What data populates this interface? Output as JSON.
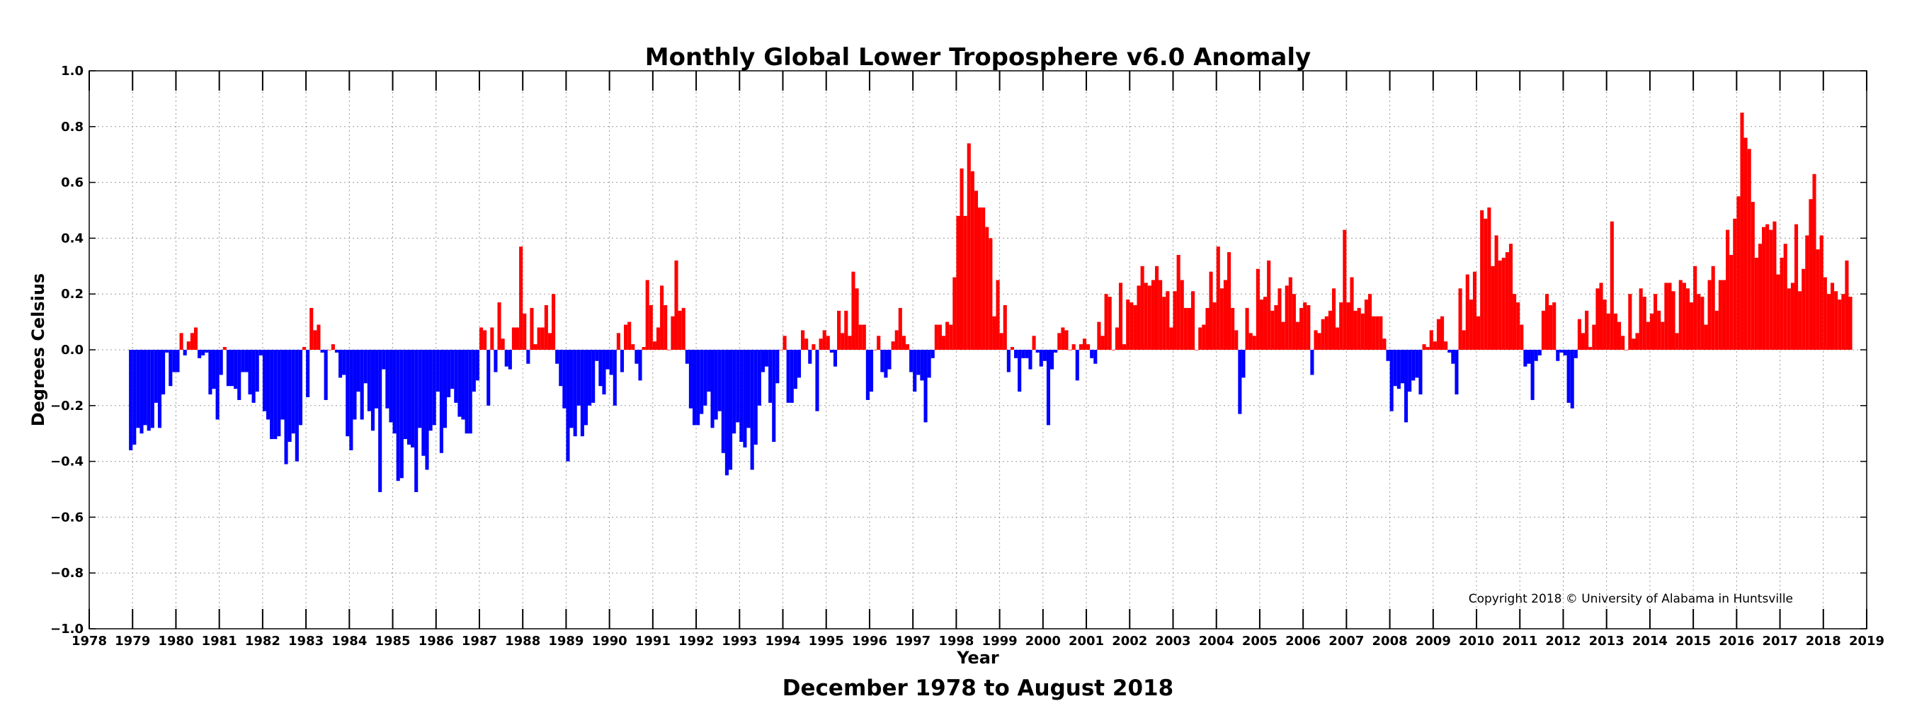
{
  "chart_data": {
    "type": "bar",
    "title": "Monthly Global Lower Troposphere v6.0 Anomaly",
    "xlabel": "Year",
    "ylabel": "Degrees Celsius",
    "subtitle_below": "December 1978 to August 2018",
    "copyright": "Copyright 2018 © University of Alabama in Huntsville",
    "xlim": [
      1978,
      2019
    ],
    "ylim": [
      -1.0,
      1.0
    ],
    "x_ticks": [
      "1978",
      "1979",
      "1980",
      "1981",
      "1982",
      "1983",
      "1984",
      "1985",
      "1986",
      "1987",
      "1988",
      "1989",
      "1990",
      "1991",
      "1992",
      "1993",
      "1994",
      "1995",
      "1996",
      "1997",
      "1998",
      "1999",
      "2000",
      "2001",
      "2002",
      "2003",
      "2004",
      "2005",
      "2006",
      "2007",
      "2008",
      "2009",
      "2010",
      "2011",
      "2012",
      "2013",
      "2014",
      "2015",
      "2016",
      "2017",
      "2018",
      "2019"
    ],
    "y_ticks": [
      "1.0",
      "0.8",
      "0.6",
      "0.4",
      "0.2",
      "0.0",
      "−0.2",
      "−0.4",
      "−0.6",
      "−0.8",
      "−1.0"
    ],
    "y_tick_values": [
      1.0,
      0.8,
      0.6,
      0.4,
      0.2,
      0.0,
      -0.2,
      -0.4,
      -0.6,
      -0.8,
      -1.0
    ],
    "grid": true,
    "colors": {
      "positive": "#ff0000",
      "negative": "#0000ff"
    },
    "start_year": 1978,
    "start_month": 12,
    "values": [
      -0.36,
      -0.34,
      -0.28,
      -0.3,
      -0.27,
      -0.29,
      -0.28,
      -0.19,
      -0.28,
      -0.16,
      -0.01,
      -0.13,
      -0.08,
      -0.08,
      0.06,
      -0.02,
      0.03,
      0.06,
      0.08,
      -0.03,
      -0.02,
      -0.01,
      -0.16,
      -0.14,
      -0.25,
      -0.09,
      0.01,
      -0.13,
      -0.13,
      -0.14,
      -0.18,
      -0.08,
      -0.08,
      -0.16,
      -0.19,
      -0.15,
      -0.02,
      -0.22,
      -0.25,
      -0.32,
      -0.32,
      -0.31,
      -0.25,
      -0.41,
      -0.33,
      -0.3,
      -0.4,
      -0.27,
      0.01,
      -0.17,
      0.15,
      0.07,
      0.09,
      -0.01,
      -0.18,
      0.0,
      0.02,
      -0.01,
      -0.1,
      -0.09,
      -0.31,
      -0.36,
      -0.25,
      -0.15,
      -0.25,
      -0.12,
      -0.22,
      -0.29,
      -0.21,
      -0.51,
      -0.07,
      -0.21,
      -0.26,
      -0.3,
      -0.47,
      -0.46,
      -0.32,
      -0.34,
      -0.35,
      -0.51,
      -0.28,
      -0.38,
      -0.43,
      -0.29,
      -0.27,
      -0.15,
      -0.37,
      -0.28,
      -0.17,
      -0.14,
      -0.19,
      -0.24,
      -0.25,
      -0.3,
      -0.3,
      -0.15,
      -0.11,
      0.08,
      0.07,
      -0.2,
      0.08,
      -0.08,
      0.17,
      0.04,
      -0.06,
      -0.07,
      0.08,
      0.08,
      0.37,
      0.13,
      -0.05,
      0.15,
      0.02,
      0.08,
      0.08,
      0.16,
      0.06,
      0.2,
      -0.05,
      -0.13,
      -0.21,
      -0.4,
      -0.28,
      -0.31,
      -0.2,
      -0.31,
      -0.27,
      -0.2,
      -0.19,
      -0.04,
      -0.13,
      -0.16,
      -0.07,
      -0.09,
      -0.2,
      0.06,
      -0.08,
      0.09,
      0.1,
      0.02,
      -0.05,
      -0.11,
      0.01,
      0.25,
      0.16,
      0.03,
      0.08,
      0.23,
      0.16,
      0.0,
      0.12,
      0.32,
      0.14,
      0.15,
      -0.05,
      -0.21,
      -0.27,
      -0.27,
      -0.23,
      -0.2,
      -0.15,
      -0.28,
      -0.25,
      -0.22,
      -0.37,
      -0.45,
      -0.43,
      -0.3,
      -0.26,
      -0.33,
      -0.35,
      -0.28,
      -0.43,
      -0.34,
      -0.2,
      -0.08,
      -0.06,
      -0.19,
      -0.33,
      -0.12,
      0.0,
      0.05,
      -0.19,
      -0.19,
      -0.14,
      -0.1,
      0.07,
      0.04,
      -0.05,
      0.02,
      -0.22,
      0.04,
      0.07,
      0.05,
      -0.01,
      -0.06,
      0.14,
      0.06,
      0.14,
      0.05,
      0.28,
      0.22,
      0.09,
      0.09,
      -0.18,
      -0.15,
      0.0,
      0.05,
      -0.08,
      -0.1,
      -0.07,
      0.03,
      0.07,
      0.15,
      0.05,
      0.02,
      -0.08,
      -0.15,
      -0.09,
      -0.11,
      -0.26,
      -0.1,
      -0.03,
      0.09,
      0.09,
      0.05,
      0.1,
      0.09,
      0.26,
      0.48,
      0.65,
      0.48,
      0.74,
      0.64,
      0.57,
      0.51,
      0.51,
      0.44,
      0.4,
      0.12,
      0.25,
      0.06,
      0.16,
      -0.08,
      0.01,
      -0.03,
      -0.15,
      -0.03,
      -0.03,
      -0.07,
      0.05,
      -0.01,
      -0.06,
      -0.04,
      -0.27,
      -0.07,
      -0.01,
      0.06,
      0.08,
      0.07,
      0.0,
      0.02,
      -0.11,
      0.02,
      0.04,
      0.02,
      -0.03,
      -0.05,
      0.1,
      0.05,
      0.2,
      0.19,
      0.0,
      0.08,
      0.24,
      0.02,
      0.18,
      0.17,
      0.16,
      0.23,
      0.3,
      0.24,
      0.23,
      0.25,
      0.3,
      0.25,
      0.19,
      0.21,
      0.08,
      0.21,
      0.34,
      0.25,
      0.15,
      0.15,
      0.21,
      0.0,
      0.08,
      0.09,
      0.15,
      0.28,
      0.17,
      0.37,
      0.22,
      0.25,
      0.35,
      0.15,
      0.07,
      -0.23,
      -0.1,
      0.15,
      0.06,
      0.05,
      0.29,
      0.18,
      0.19,
      0.32,
      0.14,
      0.16,
      0.22,
      0.1,
      0.23,
      0.26,
      0.2,
      0.1,
      0.15,
      0.17,
      0.16,
      -0.09,
      0.07,
      0.06,
      0.11,
      0.12,
      0.14,
      0.22,
      0.08,
      0.17,
      0.43,
      0.17,
      0.26,
      0.14,
      0.15,
      0.13,
      0.18,
      0.2,
      0.12,
      0.12,
      0.12,
      0.04,
      -0.04,
      -0.22,
      -0.13,
      -0.14,
      -0.12,
      -0.26,
      -0.15,
      -0.11,
      -0.1,
      -0.16,
      0.02,
      0.01,
      0.07,
      0.03,
      0.11,
      0.12,
      0.03,
      -0.01,
      -0.05,
      -0.16,
      0.22,
      0.07,
      0.27,
      0.18,
      0.28,
      0.12,
      0.5,
      0.47,
      0.51,
      0.3,
      0.41,
      0.32,
      0.33,
      0.35,
      0.38,
      0.2,
      0.17,
      0.09,
      -0.06,
      -0.05,
      -0.18,
      -0.04,
      -0.02,
      0.14,
      0.2,
      0.16,
      0.17,
      -0.04,
      -0.01,
      -0.02,
      -0.19,
      -0.21,
      -0.03,
      0.11,
      0.06,
      0.14,
      0.01,
      0.09,
      0.22,
      0.24,
      0.18,
      0.13,
      0.46,
      0.13,
      0.1,
      0.05,
      0.0,
      0.2,
      0.04,
      0.06,
      0.22,
      0.19,
      0.1,
      0.13,
      0.2,
      0.14,
      0.1,
      0.24,
      0.24,
      0.21,
      0.06,
      0.25,
      0.24,
      0.22,
      0.17,
      0.3,
      0.2,
      0.19,
      0.09,
      0.25,
      0.3,
      0.14,
      0.25,
      0.25,
      0.43,
      0.34,
      0.47,
      0.55,
      0.85,
      0.76,
      0.72,
      0.53,
      0.33,
      0.38,
      0.44,
      0.45,
      0.43,
      0.46,
      0.27,
      0.33,
      0.38,
      0.22,
      0.24,
      0.45,
      0.21,
      0.29,
      0.41,
      0.54,
      0.63,
      0.36,
      0.41,
      0.26,
      0.2,
      0.24,
      0.21,
      0.18,
      0.2,
      0.32,
      0.19
    ]
  }
}
